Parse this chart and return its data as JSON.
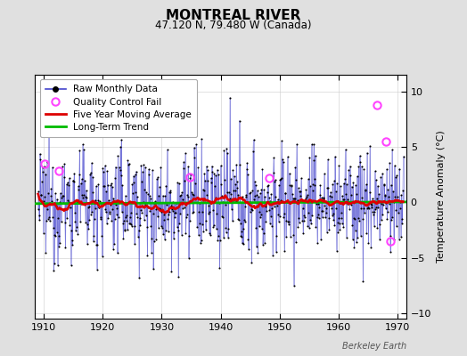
{
  "title": "MONTREAL RIVER",
  "subtitle": "47.120 N, 79.480 W (Canada)",
  "ylabel": "Temperature Anomaly (°C)",
  "watermark": "Berkeley Earth",
  "ylim": [
    -10.5,
    11.5
  ],
  "xlim": [
    1908.5,
    1971.5
  ],
  "yticks": [
    -10,
    -5,
    0,
    5,
    10
  ],
  "xticks": [
    1910,
    1920,
    1930,
    1940,
    1950,
    1960,
    1970
  ],
  "bg_color": "#e0e0e0",
  "plot_bg_color": "#ffffff",
  "raw_line_color": "#4444cc",
  "raw_line_alpha": 0.6,
  "raw_dot_color": "#000000",
  "ma_color": "#dd0000",
  "trend_color": "#00bb00",
  "qc_fail_color": "#ff44ff",
  "seed": 12345,
  "start_year": 1909.0,
  "n_months": 745,
  "trend_slope": 0.0025,
  "trend_intercept": -0.05,
  "std_dev": 2.4,
  "qc_fail_x": [
    1910.08,
    1912.5,
    1934.75,
    1948.25,
    1966.5,
    1968.0,
    1968.75
  ],
  "qc_fail_y": [
    3.5,
    2.8,
    2.3,
    2.2,
    8.8,
    5.5,
    -3.5
  ]
}
